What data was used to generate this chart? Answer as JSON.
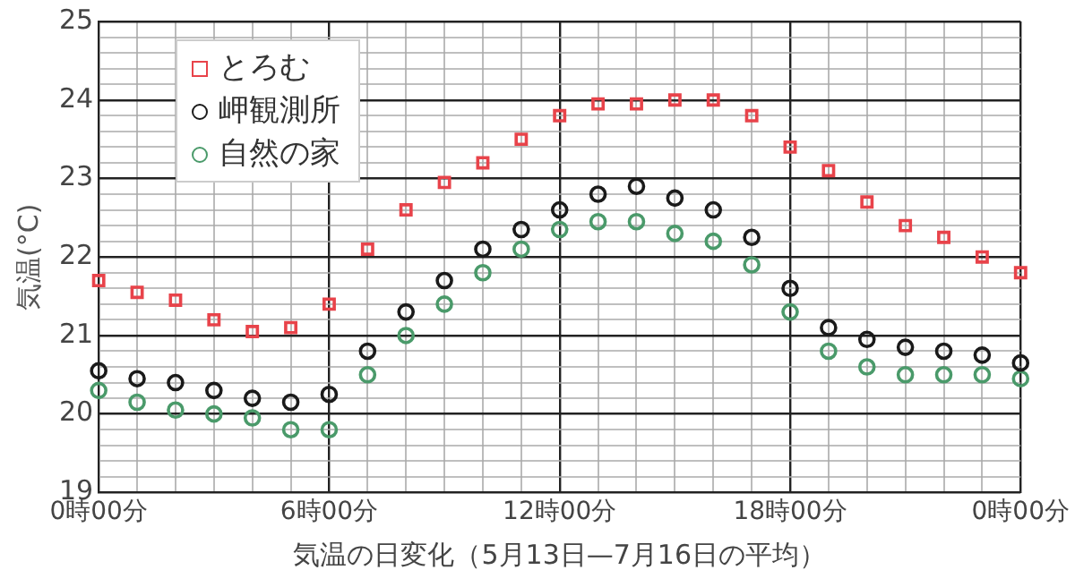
{
  "chart_data": {
    "type": "scatter",
    "ylabel": "気温(°C)",
    "xlabel": "気温の日変化（5月13日—7月16日の平均）",
    "categories": [
      "0時00分",
      null,
      null,
      null,
      null,
      null,
      "6時00分",
      null,
      null,
      null,
      null,
      null,
      "12時00分",
      null,
      null,
      null,
      null,
      null,
      "18時00分",
      null,
      null,
      null,
      null,
      null,
      "0時00分"
    ],
    "ylim": [
      19,
      25
    ],
    "yticks": [
      19,
      {
        "value": 19.2,
        "label": null
      },
      {
        "value": 19.4,
        "label": null
      },
      {
        "value": 19.6,
        "label": null
      },
      {
        "value": 19.8,
        "label": null
      },
      20,
      {
        "value": 20.2,
        "label": null
      },
      {
        "value": 20.4,
        "label": null
      },
      {
        "value": 20.6,
        "label": null
      },
      {
        "value": 20.8,
        "label": null
      },
      21,
      {
        "value": 21.2,
        "label": null
      },
      {
        "value": 21.4,
        "label": null
      },
      {
        "value": 21.6,
        "label": null
      },
      {
        "value": 21.8,
        "label": null
      },
      22,
      {
        "value": 22.2,
        "label": null
      },
      {
        "value": 22.4,
        "label": null
      },
      {
        "value": 22.6,
        "label": null
      },
      {
        "value": 22.8,
        "label": null
      },
      23,
      {
        "value": 23.2,
        "label": null
      },
      {
        "value": 23.4,
        "label": null
      },
      {
        "value": 23.6,
        "label": null
      },
      {
        "value": 23.8,
        "label": null
      },
      24,
      {
        "value": 24.2,
        "label": null
      },
      {
        "value": 24.4,
        "label": null
      },
      {
        "value": 24.6,
        "label": null
      },
      {
        "value": 24.8,
        "label": null
      },
      25
    ],
    "grid": true,
    "legend": "top left",
    "series": [
      {
        "name": "とろむ",
        "color": "#e8434a",
        "marker": "square",
        "values": [
          21.7,
          21.55,
          21.45,
          21.2,
          21.05,
          21.1,
          21.4,
          22.1,
          22.6,
          22.95,
          23.2,
          23.5,
          23.8,
          23.95,
          23.95,
          24.0,
          24.0,
          23.8,
          23.4,
          23.1,
          22.7,
          22.4,
          22.25,
          22.0,
          21.8
        ]
      },
      {
        "name": "岬観測所",
        "color": "#1a1a1a",
        "marker": "circle",
        "values": [
          20.55,
          20.45,
          20.4,
          20.3,
          20.2,
          20.15,
          20.25,
          20.8,
          21.3,
          21.7,
          22.1,
          22.35,
          22.6,
          22.8,
          22.9,
          22.75,
          22.6,
          22.25,
          21.6,
          21.1,
          20.95,
          20.85,
          20.8,
          20.75,
          20.65
        ]
      },
      {
        "name": "自然の家",
        "color": "#4a9a6a",
        "marker": "circle",
        "values": [
          20.3,
          20.15,
          20.05,
          20.0,
          19.95,
          19.8,
          19.8,
          20.5,
          21.0,
          21.4,
          21.8,
          22.1,
          22.35,
          22.45,
          22.45,
          22.3,
          22.2,
          21.9,
          21.3,
          20.8,
          20.6,
          20.5,
          20.5,
          20.5,
          20.45
        ]
      }
    ]
  }
}
